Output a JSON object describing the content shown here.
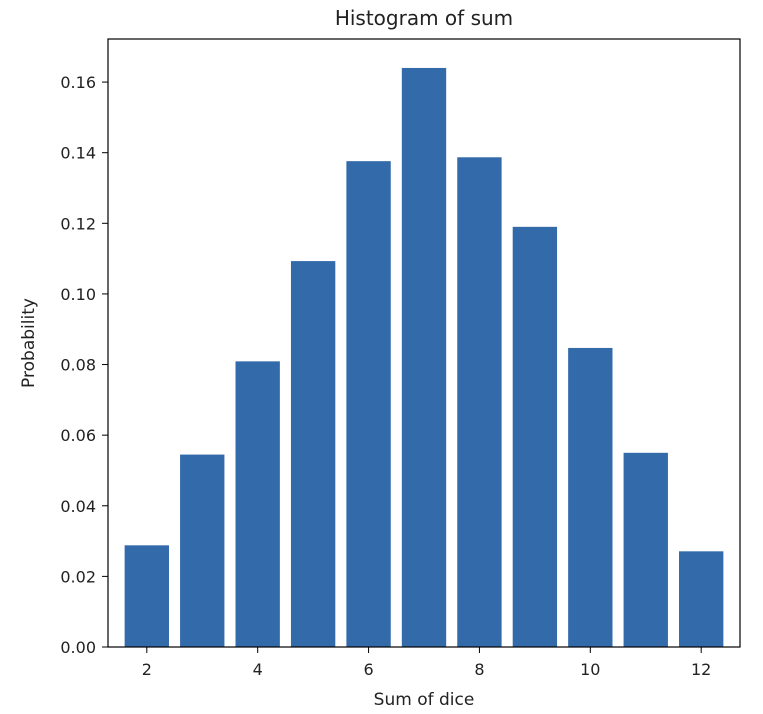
{
  "chart_data": {
    "type": "bar",
    "title": "Histogram of sum",
    "xlabel": "Sum of dice",
    "ylabel": "Probability",
    "x": [
      2,
      3,
      4,
      5,
      6,
      7,
      8,
      9,
      10,
      11,
      12
    ],
    "values": [
      0.0288,
      0.0545,
      0.0809,
      0.1093,
      0.1376,
      0.164,
      0.1387,
      0.119,
      0.0847,
      0.055,
      0.0271
    ],
    "xlim": [
      1.3,
      12.7
    ],
    "ylim": [
      0,
      0.1722
    ],
    "xticks": [
      2,
      4,
      6,
      8,
      10,
      12
    ],
    "xtick_labels": [
      "2",
      "4",
      "6",
      "8",
      "10",
      "12"
    ],
    "yticks": [
      0,
      0.02,
      0.04,
      0.06,
      0.08,
      0.1,
      0.12,
      0.14,
      0.16
    ],
    "ytick_labels": [
      "0.00",
      "0.02",
      "0.04",
      "0.06",
      "0.08",
      "0.10",
      "0.12",
      "0.14",
      "0.16"
    ],
    "bar_color": "#336aaa",
    "grid": false
  }
}
